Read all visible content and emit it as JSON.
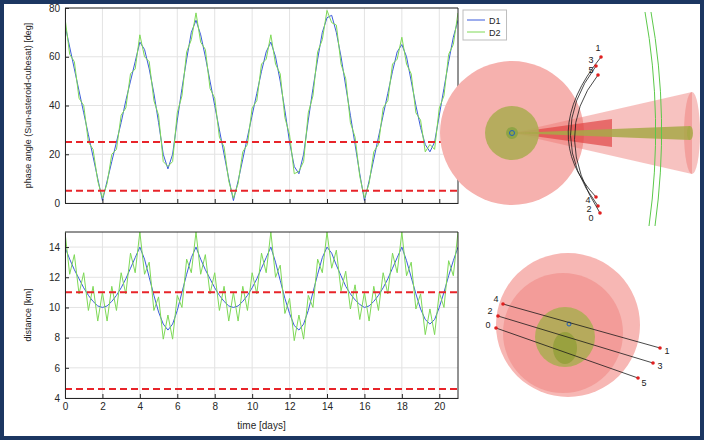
{
  "chart_data": [
    {
      "type": "line",
      "y_label": "phase angle (Sun-asteroid-cubesat) [deg]",
      "x": [
        0,
        0.25,
        0.5,
        0.75,
        1,
        1.25,
        1.5,
        1.75,
        2,
        2.25,
        2.5,
        2.75,
        3,
        3.25,
        3.5,
        3.75,
        4,
        4.25,
        4.5,
        4.75,
        5,
        5.25,
        5.5,
        5.75,
        6,
        6.25,
        6.5,
        6.75,
        7,
        7.25,
        7.5,
        7.75,
        8,
        8.25,
        8.5,
        8.75,
        9,
        9.25,
        9.5,
        9.75,
        10,
        10.25,
        10.5,
        10.75,
        11,
        11.25,
        11.5,
        11.75,
        12,
        12.25,
        12.5,
        12.75,
        13,
        13.25,
        13.5,
        13.75,
        14,
        14.25,
        14.5,
        14.75,
        15,
        15.25,
        15.5,
        15.75,
        16,
        16.25,
        16.5,
        16.75,
        17,
        17.25,
        17.5,
        17.75,
        18,
        18.25,
        18.5,
        18.75,
        19,
        19.25,
        19.5,
        19.75,
        20,
        20.25,
        20.5,
        20.75,
        21
      ],
      "xlim": [
        0,
        21
      ],
      "xticks": [
        0,
        2,
        4,
        6,
        8,
        10,
        12,
        14,
        16,
        18,
        20
      ],
      "ylim": [
        0,
        80
      ],
      "yticks": [
        0,
        20,
        40,
        60,
        80
      ],
      "grid": true,
      "legend": "right",
      "tick_labels": "y",
      "series": [
        {
          "name": "D1",
          "color": "#3b5bdb",
          "line_style": "solid",
          "values": [
            73,
            64,
            55,
            46,
            37,
            28,
            19,
            10,
            1,
            9,
            17,
            25,
            33,
            42,
            50,
            58,
            66,
            63,
            55,
            45,
            33,
            20,
            14,
            20,
            34,
            47,
            59,
            70,
            75,
            69,
            60,
            50,
            40,
            30,
            20,
            10,
            1,
            9,
            18,
            27,
            36,
            45,
            54,
            62,
            66,
            60,
            50,
            38,
            25,
            15,
            12,
            20,
            34,
            47,
            59,
            70,
            76,
            77,
            70,
            60,
            48,
            36,
            24,
            12,
            1,
            9,
            18,
            27,
            36,
            45,
            54,
            62,
            65,
            60,
            50,
            40,
            31,
            24,
            21,
            25,
            36,
            47,
            58,
            68,
            75
          ]
        },
        {
          "name": "D2",
          "color": "#7ed957",
          "line_style": "solid",
          "values": [
            76,
            61,
            58,
            43,
            40,
            25,
            22,
            9,
            2,
            8,
            20,
            22,
            36,
            39,
            53,
            55,
            69,
            60,
            58,
            42,
            36,
            17,
            15,
            17,
            37,
            44,
            62,
            67,
            78,
            66,
            63,
            47,
            43,
            27,
            23,
            9,
            2,
            8,
            21,
            24,
            39,
            42,
            57,
            59,
            69,
            57,
            53,
            35,
            28,
            12,
            13,
            17,
            37,
            44,
            62,
            67,
            79,
            74,
            73,
            57,
            51,
            33,
            27,
            11,
            2,
            8,
            21,
            24,
            39,
            42,
            57,
            59,
            68,
            57,
            53,
            37,
            34,
            21,
            24,
            22,
            39,
            44,
            61,
            65,
            78
          ]
        }
      ],
      "reference_lines": [
        {
          "value": 25,
          "color": "#e8242a",
          "line_style": "dashed"
        },
        {
          "value": 5,
          "color": "#e8242a",
          "line_style": "dashed"
        }
      ]
    },
    {
      "type": "line",
      "x_label": "time [days]",
      "y_label": "distance [km]",
      "x": [
        0,
        0.25,
        0.5,
        0.75,
        1,
        1.25,
        1.5,
        1.75,
        2,
        2.25,
        2.5,
        2.75,
        3,
        3.25,
        3.5,
        3.75,
        4,
        4.25,
        4.5,
        4.75,
        5,
        5.25,
        5.5,
        5.75,
        6,
        6.25,
        6.5,
        6.75,
        7,
        7.25,
        7.5,
        7.75,
        8,
        8.25,
        8.5,
        8.75,
        9,
        9.25,
        9.5,
        9.75,
        10,
        10.25,
        10.5,
        10.75,
        11,
        11.25,
        11.5,
        11.75,
        12,
        12.25,
        12.5,
        12.75,
        13,
        13.25,
        13.5,
        13.75,
        14,
        14.25,
        14.5,
        14.75,
        15,
        15.25,
        15.5,
        15.75,
        16,
        16.25,
        16.5,
        16.75,
        17,
        17.25,
        17.5,
        17.75,
        18,
        18.25,
        18.5,
        18.75,
        19,
        19.25,
        19.5,
        19.75,
        20,
        20.25,
        20.5,
        20.75,
        21
      ],
      "xlim": [
        0,
        21
      ],
      "xticks": [
        0,
        2,
        4,
        6,
        8,
        10,
        12,
        14,
        16,
        18,
        20
      ],
      "ylim": [
        4,
        15
      ],
      "yticks": [
        4,
        6,
        8,
        10,
        12,
        14
      ],
      "grid": true,
      "series": [
        {
          "color": "#3b5bdb",
          "line_style": "solid",
          "values": [
            14,
            13.2,
            12.5,
            11.9,
            11.3,
            10.8,
            10.4,
            10.1,
            10,
            10.1,
            10.4,
            10.8,
            11.3,
            11.9,
            12.6,
            13.3,
            14,
            13.2,
            12,
            10.8,
            9.7,
            8.9,
            8.5,
            8.9,
            9.8,
            11,
            12.2,
            13.3,
            14,
            13.2,
            12.5,
            11.9,
            11.3,
            10.8,
            10.4,
            10.1,
            10,
            10.1,
            10.4,
            10.8,
            11.3,
            11.9,
            12.6,
            13.3,
            14,
            13,
            11.8,
            10.6,
            9.6,
            8.8,
            8.5,
            8.9,
            9.8,
            11,
            12.2,
            13.3,
            14,
            13.6,
            12.8,
            12.1,
            11.4,
            10.9,
            10.5,
            10.2,
            10,
            10.1,
            10.4,
            10.8,
            11.3,
            11.9,
            12.6,
            13.3,
            14,
            13.1,
            12,
            10.9,
            9.9,
            9.2,
            8.9,
            9.2,
            10,
            11,
            12.1,
            13.1,
            14
          ]
        },
        {
          "color": "#7ed957",
          "line_style": "solid",
          "values": [
            15,
            12.2,
            13.5,
            10.9,
            12.3,
            9.8,
            11.4,
            9.1,
            11,
            9.1,
            11.4,
            9.8,
            12.3,
            10.9,
            13.6,
            12.3,
            15,
            12.2,
            13,
            9.8,
            10.7,
            7.9,
            9.5,
            7.9,
            10.8,
            10,
            13.2,
            12.3,
            15,
            12.2,
            13.5,
            10.9,
            12.3,
            9.8,
            11.4,
            9.1,
            11,
            9.1,
            11.4,
            9.8,
            12.3,
            10.9,
            13.6,
            12.3,
            15,
            12,
            12.8,
            9.6,
            10.6,
            7.8,
            9.5,
            7.9,
            10.8,
            10,
            13.2,
            12.3,
            15,
            12.6,
            13.8,
            11.1,
            12.4,
            9.9,
            11.5,
            9.2,
            11,
            9.1,
            11.4,
            9.8,
            12.3,
            10.9,
            13.6,
            12.3,
            15,
            12.1,
            13,
            9.9,
            10.9,
            8.2,
            9.9,
            8.2,
            11,
            10,
            13.1,
            12.1,
            15
          ]
        }
      ],
      "reference_lines": [
        {
          "value": 11,
          "color": "#e8242a",
          "line_style": "dashed"
        },
        {
          "value": 4.6,
          "color": "#e8242a",
          "line_style": "dashed"
        }
      ]
    }
  ],
  "diagrams": [
    {
      "start_labels": [
        "1",
        "3",
        "5"
      ],
      "end_labels": [
        "4",
        "2",
        "0"
      ]
    },
    {
      "start_labels": [
        "4",
        "2",
        "0"
      ],
      "end_labels": [
        "1",
        "3",
        "5"
      ]
    }
  ]
}
